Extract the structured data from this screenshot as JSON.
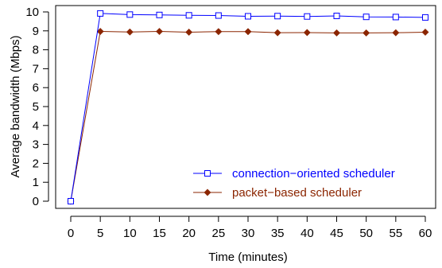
{
  "chart_data": {
    "type": "line",
    "title": "",
    "xlabel": "Time (minutes)",
    "ylabel": "Average bandwidth (Mbps)",
    "xlim": [
      0,
      60
    ],
    "ylim": [
      0,
      10
    ],
    "xticks": [
      0,
      5,
      10,
      15,
      20,
      25,
      30,
      35,
      40,
      45,
      50,
      55,
      60
    ],
    "yticks": [
      0,
      1,
      2,
      3,
      4,
      5,
      6,
      7,
      8,
      9,
      10
    ],
    "grid": false,
    "legend_position": "bottom-right",
    "x": [
      0,
      5,
      10,
      15,
      20,
      25,
      30,
      35,
      40,
      45,
      50,
      55,
      60
    ],
    "series": [
      {
        "name": "connection−oriented scheduler",
        "color": "#0000ff",
        "marker": "open-square",
        "values": [
          0,
          9.92,
          9.86,
          9.84,
          9.82,
          9.81,
          9.77,
          9.78,
          9.76,
          9.79,
          9.74,
          9.73,
          9.71
        ]
      },
      {
        "name": "packet−based scheduler",
        "color": "#8b2500",
        "marker": "filled-diamond",
        "values": [
          0,
          8.97,
          8.94,
          8.97,
          8.93,
          8.96,
          8.96,
          8.9,
          8.91,
          8.89,
          8.89,
          8.9,
          8.93
        ]
      }
    ]
  }
}
